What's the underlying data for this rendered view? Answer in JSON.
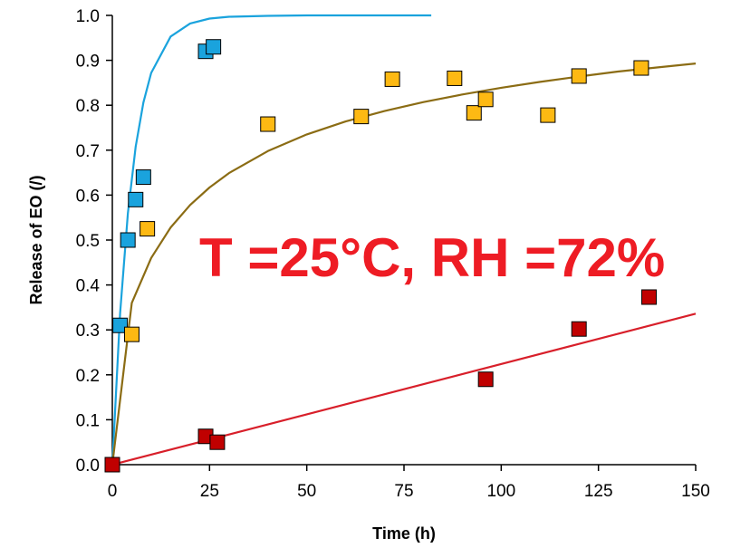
{
  "chart_data": {
    "type": "scatter",
    "xlabel": "Time (h)",
    "ylabel": "Release of EO (/)",
    "xlim": [
      0,
      150
    ],
    "ylim": [
      0,
      1.0
    ],
    "x_ticks": [
      "0",
      "25",
      "50",
      "75",
      "100",
      "125",
      "150"
    ],
    "y_ticks": [
      "0.0",
      "0.1",
      "0.2",
      "0.3",
      "0.4",
      "0.5",
      "0.6",
      "0.7",
      "0.8",
      "0.9",
      "1.0"
    ],
    "grid": false,
    "annotation": "T =25°C, RH =72%",
    "series": [
      {
        "color": "#1aa3dd",
        "points": [
          [
            0,
            0.0
          ],
          [
            2,
            0.31
          ],
          [
            4,
            0.5
          ],
          [
            6,
            0.59
          ],
          [
            8,
            0.64
          ],
          [
            24,
            0.92
          ],
          [
            26,
            0.93
          ]
        ],
        "fit": [
          [
            0,
            0.0
          ],
          [
            2,
            0.337
          ],
          [
            4,
            0.56
          ],
          [
            6,
            0.708
          ],
          [
            8,
            0.806
          ],
          [
            10,
            0.872
          ],
          [
            15,
            0.953
          ],
          [
            20,
            0.982
          ],
          [
            25,
            0.993
          ],
          [
            30,
            0.997
          ],
          [
            40,
            0.999
          ],
          [
            50,
            1.0
          ],
          [
            60,
            1.0
          ],
          [
            70,
            1.0
          ],
          [
            82,
            1.0
          ]
        ]
      },
      {
        "color": "#fdb913",
        "points": [
          [
            0,
            0.0
          ],
          [
            5,
            0.29
          ],
          [
            9,
            0.525
          ],
          [
            40,
            0.758
          ],
          [
            64,
            0.775
          ],
          [
            72,
            0.858
          ],
          [
            88,
            0.86
          ],
          [
            93,
            0.783
          ],
          [
            96,
            0.813
          ],
          [
            112,
            0.778
          ],
          [
            120,
            0.865
          ],
          [
            136,
            0.883
          ]
        ],
        "fit": [
          [
            0,
            0.0
          ],
          [
            5,
            0.36
          ],
          [
            10,
            0.46
          ],
          [
            15,
            0.528
          ],
          [
            20,
            0.578
          ],
          [
            25,
            0.617
          ],
          [
            30,
            0.649
          ],
          [
            40,
            0.698
          ],
          [
            50,
            0.735
          ],
          [
            60,
            0.764
          ],
          [
            70,
            0.787
          ],
          [
            80,
            0.807
          ],
          [
            90,
            0.824
          ],
          [
            100,
            0.839
          ],
          [
            110,
            0.852
          ],
          [
            120,
            0.864
          ],
          [
            130,
            0.875
          ],
          [
            140,
            0.884
          ],
          [
            150,
            0.893
          ]
        ],
        "fit_color": "#8b6c14"
      },
      {
        "color": "#c00000",
        "points": [
          [
            0,
            0.0
          ],
          [
            24,
            0.063
          ],
          [
            27,
            0.05
          ],
          [
            96,
            0.19
          ],
          [
            120,
            0.302
          ],
          [
            138,
            0.373
          ]
        ],
        "fit": [
          [
            0,
            0.0
          ],
          [
            150,
            0.336
          ]
        ],
        "fit_color": "#d81f2a"
      }
    ]
  }
}
